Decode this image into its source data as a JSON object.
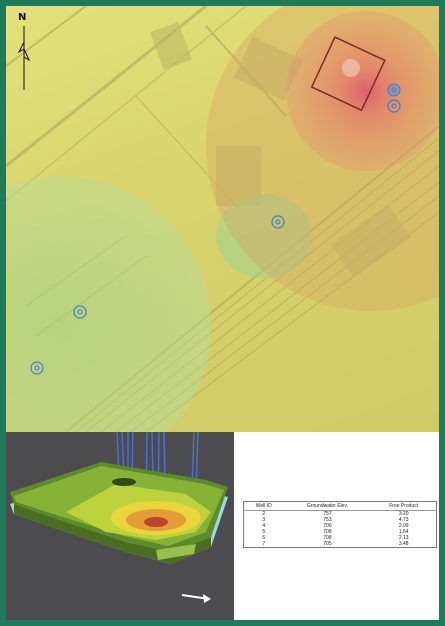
{
  "map": {
    "north_label": "N",
    "wells": [
      {
        "name": "well-marker-2"
      },
      {
        "name": "well-marker-3"
      },
      {
        "name": "well-marker-4"
      },
      {
        "name": "well-marker-5"
      },
      {
        "name": "well-marker-6"
      },
      {
        "name": "well-marker-7"
      }
    ],
    "colors": {
      "base": "#dcd770",
      "red_plume": "#e86a6a",
      "green_plume": "#a8d98a",
      "marker": "#3a7fd0"
    }
  },
  "table": {
    "headers": [
      "Well ID",
      "Groundwater Elev.",
      "Free Product"
    ],
    "rows": [
      [
        "2",
        "757",
        "3.20"
      ],
      [
        "3",
        "753",
        "4.73"
      ],
      [
        "4",
        "706",
        "2.09"
      ],
      [
        "5",
        "708",
        "1.64"
      ],
      [
        "6",
        "708",
        "2.13"
      ],
      [
        "7",
        "705",
        "3.48"
      ]
    ]
  },
  "model": {
    "arrow_icon": "arrow-right-icon"
  }
}
